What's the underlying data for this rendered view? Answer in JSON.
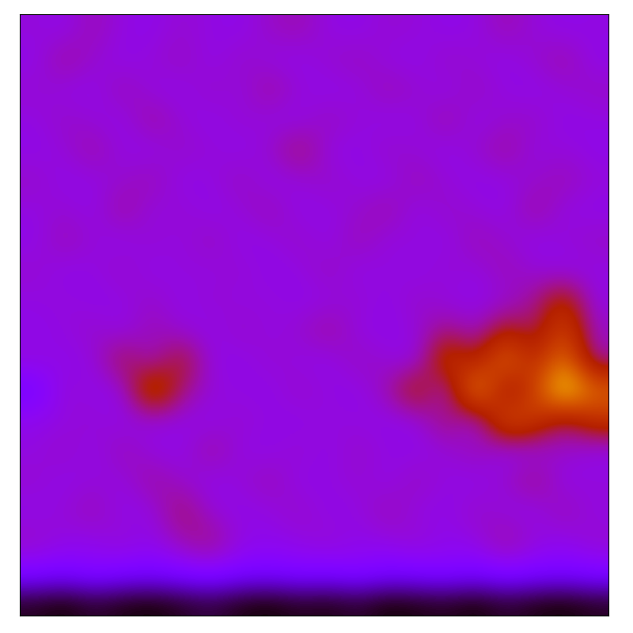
{
  "chart_data": {
    "type": "heatmap",
    "tick_labels": false,
    "values": [
      [
        0.32,
        0.3,
        0.36,
        0.31,
        0.3,
        0.33,
        0.31,
        0.3,
        0.34,
        0.36,
        0.31,
        0.3,
        0.33,
        0.32,
        0.3,
        0.31,
        0.36,
        0.32,
        0.3,
        0.31
      ],
      [
        0.3,
        0.38,
        0.33,
        0.3,
        0.32,
        0.35,
        0.3,
        0.34,
        0.31,
        0.3,
        0.33,
        0.35,
        0.31,
        0.3,
        0.34,
        0.32,
        0.3,
        0.33,
        0.37,
        0.3
      ],
      [
        0.33,
        0.31,
        0.3,
        0.36,
        0.31,
        0.3,
        0.34,
        0.31,
        0.38,
        0.32,
        0.3,
        0.31,
        0.36,
        0.33,
        0.3,
        0.35,
        0.31,
        0.3,
        0.32,
        0.34
      ],
      [
        0.31,
        0.34,
        0.32,
        0.3,
        0.38,
        0.32,
        0.3,
        0.33,
        0.31,
        0.3,
        0.35,
        0.32,
        0.3,
        0.31,
        0.37,
        0.3,
        0.33,
        0.34,
        0.3,
        0.31
      ],
      [
        0.3,
        0.32,
        0.37,
        0.31,
        0.3,
        0.34,
        0.32,
        0.3,
        0.33,
        0.42,
        0.31,
        0.3,
        0.34,
        0.32,
        0.3,
        0.33,
        0.38,
        0.31,
        0.32,
        0.3
      ],
      [
        0.34,
        0.3,
        0.31,
        0.33,
        0.36,
        0.3,
        0.31,
        0.35,
        0.3,
        0.32,
        0.34,
        0.31,
        0.3,
        0.36,
        0.32,
        0.3,
        0.31,
        0.33,
        0.36,
        0.32
      ],
      [
        0.31,
        0.33,
        0.3,
        0.38,
        0.31,
        0.33,
        0.3,
        0.32,
        0.36,
        0.3,
        0.31,
        0.33,
        0.37,
        0.3,
        0.34,
        0.32,
        0.3,
        0.38,
        0.31,
        0.3
      ],
      [
        0.3,
        0.36,
        0.32,
        0.3,
        0.33,
        0.31,
        0.35,
        0.3,
        0.31,
        0.34,
        0.3,
        0.36,
        0.31,
        0.32,
        0.3,
        0.36,
        0.33,
        0.3,
        0.32,
        0.34
      ],
      [
        0.33,
        0.3,
        0.31,
        0.34,
        0.3,
        0.32,
        0.31,
        0.33,
        0.3,
        0.31,
        0.35,
        0.3,
        0.32,
        0.3,
        0.33,
        0.31,
        0.36,
        0.32,
        0.3,
        0.31
      ],
      [
        0.31,
        0.32,
        0.3,
        0.31,
        0.34,
        0.3,
        0.33,
        0.31,
        0.32,
        0.3,
        0.31,
        0.33,
        0.3,
        0.34,
        0.31,
        0.3,
        0.32,
        0.38,
        0.52,
        0.31
      ],
      [
        0.3,
        0.31,
        0.34,
        0.3,
        0.36,
        0.32,
        0.3,
        0.34,
        0.31,
        0.33,
        0.38,
        0.31,
        0.3,
        0.32,
        0.4,
        0.33,
        0.48,
        0.4,
        0.62,
        0.34
      ],
      [
        0.32,
        0.3,
        0.31,
        0.45,
        0.33,
        0.48,
        0.31,
        0.3,
        0.33,
        0.31,
        0.3,
        0.35,
        0.32,
        0.3,
        0.58,
        0.45,
        0.72,
        0.5,
        0.74,
        0.36
      ],
      [
        0.21,
        0.33,
        0.3,
        0.31,
        0.62,
        0.4,
        0.32,
        0.31,
        0.3,
        0.34,
        0.31,
        0.3,
        0.36,
        0.52,
        0.3,
        0.82,
        0.4,
        0.6,
        0.95,
        0.7
      ],
      [
        0.3,
        0.31,
        0.33,
        0.3,
        0.32,
        0.31,
        0.3,
        0.33,
        0.31,
        0.3,
        0.32,
        0.31,
        0.3,
        0.31,
        0.42,
        0.3,
        0.66,
        0.58,
        0.4,
        0.55
      ],
      [
        0.31,
        0.34,
        0.3,
        0.36,
        0.31,
        0.3,
        0.38,
        0.31,
        0.3,
        0.33,
        0.3,
        0.34,
        0.31,
        0.3,
        0.32,
        0.36,
        0.3,
        0.31,
        0.34,
        0.3
      ],
      [
        0.33,
        0.3,
        0.32,
        0.31,
        0.38,
        0.33,
        0.3,
        0.32,
        0.36,
        0.3,
        0.31,
        0.33,
        0.3,
        0.35,
        0.31,
        0.3,
        0.33,
        0.4,
        0.3,
        0.32
      ],
      [
        0.3,
        0.32,
        0.36,
        0.3,
        0.31,
        0.42,
        0.32,
        0.3,
        0.31,
        0.34,
        0.3,
        0.31,
        0.36,
        0.31,
        0.3,
        0.34,
        0.31,
        0.3,
        0.36,
        0.31
      ],
      [
        0.34,
        0.31,
        0.3,
        0.33,
        0.3,
        0.36,
        0.4,
        0.31,
        0.3,
        0.31,
        0.33,
        0.3,
        0.31,
        0.33,
        0.3,
        0.31,
        0.38,
        0.32,
        0.3,
        0.33
      ],
      [
        0.26,
        0.24,
        0.27,
        0.25,
        0.24,
        0.26,
        0.28,
        0.25,
        0.24,
        0.26,
        0.25,
        0.27,
        0.24,
        0.25,
        0.26,
        0.24,
        0.27,
        0.25,
        0.24,
        0.26
      ],
      [
        0.02,
        0.0,
        0.03,
        0.01,
        0.0,
        0.02,
        0.04,
        0.01,
        0.0,
        0.02,
        0.01,
        0.03,
        0.0,
        0.01,
        0.02,
        0.0,
        0.03,
        0.01,
        0.0,
        0.02
      ]
    ]
  }
}
